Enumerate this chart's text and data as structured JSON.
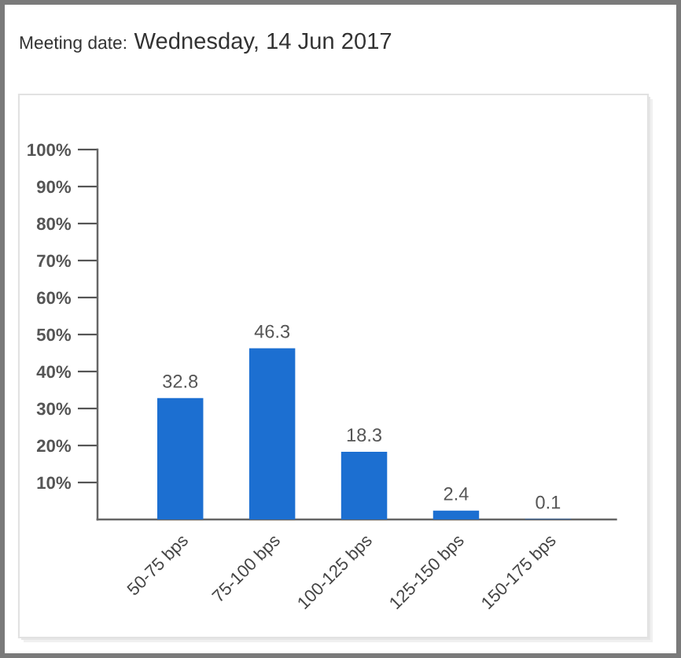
{
  "chart_data": {
    "type": "bar",
    "title": "Meeting date:",
    "subtitle": "Wednesday, 14 Jun 2017",
    "categories": [
      "50-75 bps",
      "75-100 bps",
      "100-125 bps",
      "125-150 bps",
      "150-175 bps"
    ],
    "values": [
      32.8,
      46.3,
      18.3,
      2.4,
      0.1
    ],
    "color": "#1c6fd1",
    "ylim": [
      0,
      100
    ],
    "yticks": [
      {
        "value": 10,
        "label": "10%"
      },
      {
        "value": 20,
        "label": "20%"
      },
      {
        "value": 30,
        "label": "30%"
      },
      {
        "value": 40,
        "label": "40%"
      },
      {
        "value": 50,
        "label": "50%"
      },
      {
        "value": 60,
        "label": "60%"
      },
      {
        "value": 70,
        "label": "70%"
      },
      {
        "value": 80,
        "label": "80%"
      },
      {
        "value": 90,
        "label": "90%"
      },
      {
        "value": 100,
        "label": "100%"
      }
    ],
    "data_labels": true,
    "grid": false
  }
}
